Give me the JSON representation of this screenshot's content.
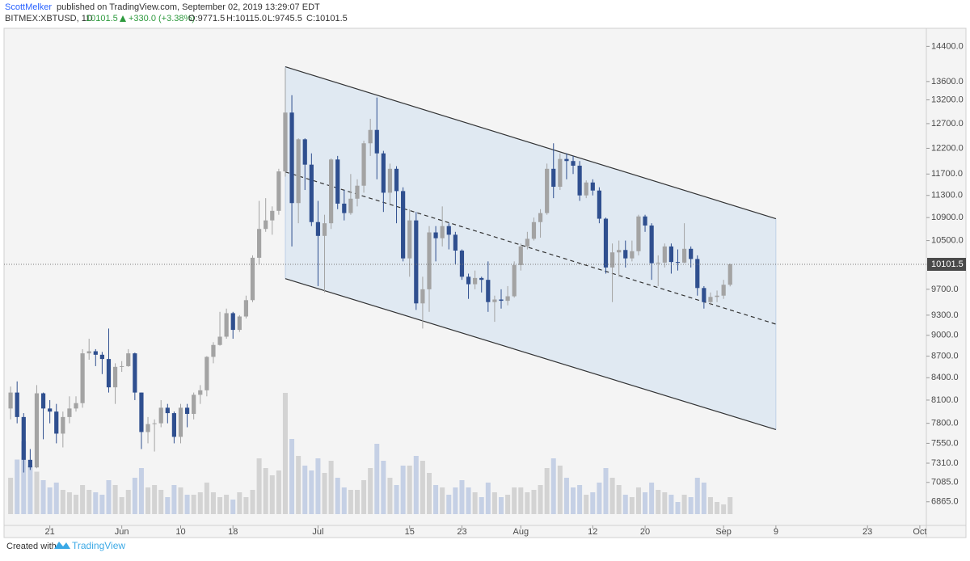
{
  "header": {
    "author": "ScottMelker",
    "published": "published on TradingView.com, September 02, 2019 13:29:07 EDT",
    "symbol": "BITMEX:XBTUSD, 1D",
    "last": "10101.5",
    "change": "+330.0 (+3.38%)",
    "open": "O:9771.5",
    "high": "H:10115.0",
    "low": "L:9745.5",
    "close": "C:10101.5"
  },
  "chart_data": {
    "type": "candlestick",
    "log_scale": true,
    "up_color": "#a3a3a3",
    "down_color": "#2f4f8f",
    "xlim": [
      "2019-05-14",
      "2019-10-02"
    ],
    "xticks": [
      {
        "value": "2019-05-21",
        "label": "21"
      },
      {
        "value": "2019-06-01",
        "label": "Jun"
      },
      {
        "value": "2019-06-10",
        "label": "10"
      },
      {
        "value": "2019-06-18",
        "label": "18"
      },
      {
        "value": "2019-07-01",
        "label": "Jul"
      },
      {
        "value": "2019-07-15",
        "label": "15"
      },
      {
        "value": "2019-07-23",
        "label": "23"
      },
      {
        "value": "2019-08-01",
        "label": "Aug"
      },
      {
        "value": "2019-08-12",
        "label": "12"
      },
      {
        "value": "2019-08-20",
        "label": "20"
      },
      {
        "value": "2019-09-01",
        "label": "Sep"
      },
      {
        "value": "2019-09-09",
        "label": "9"
      },
      {
        "value": "2019-09-23",
        "label": "23"
      },
      {
        "value": "2019-10-01",
        "label": "Oct"
      }
    ],
    "ylim": [
      6606,
      14830
    ],
    "yticks": [
      {
        "value": 14400,
        "label": "14400.0"
      },
      {
        "value": 13600,
        "label": "13600.0"
      },
      {
        "value": 13200,
        "label": "13200.0"
      },
      {
        "value": 12700,
        "label": "12700.0"
      },
      {
        "value": 12200,
        "label": "12200.0"
      },
      {
        "value": 11700,
        "label": "11700.0"
      },
      {
        "value": 11300,
        "label": "11300.0"
      },
      {
        "value": 10900,
        "label": "10900.0"
      },
      {
        "value": 10500,
        "label": "10500.0"
      },
      {
        "value": 9700,
        "label": "9700.0"
      },
      {
        "value": 9300,
        "label": "9300.0"
      },
      {
        "value": 9000,
        "label": "9000.0"
      },
      {
        "value": 8700,
        "label": "8700.0"
      },
      {
        "value": 8400,
        "label": "8400.0"
      },
      {
        "value": 8100,
        "label": "8100.0"
      },
      {
        "value": 7800,
        "label": "7800.0"
      },
      {
        "value": 7550,
        "label": "7550.0"
      },
      {
        "value": 7310,
        "label": "7310.0"
      },
      {
        "value": 7085,
        "label": "7085.0"
      },
      {
        "value": 6865,
        "label": "6865.0"
      }
    ],
    "x": [
      "2019-05-15",
      "2019-05-16",
      "2019-05-17",
      "2019-05-18",
      "2019-05-19",
      "2019-05-20",
      "2019-05-21",
      "2019-05-22",
      "2019-05-23",
      "2019-05-24",
      "2019-05-25",
      "2019-05-26",
      "2019-05-27",
      "2019-05-28",
      "2019-05-29",
      "2019-05-30",
      "2019-05-31",
      "2019-06-01",
      "2019-06-02",
      "2019-06-03",
      "2019-06-04",
      "2019-06-05",
      "2019-06-06",
      "2019-06-07",
      "2019-06-08",
      "2019-06-09",
      "2019-06-10",
      "2019-06-11",
      "2019-06-12",
      "2019-06-13",
      "2019-06-14",
      "2019-06-15",
      "2019-06-16",
      "2019-06-17",
      "2019-06-18",
      "2019-06-19",
      "2019-06-20",
      "2019-06-21",
      "2019-06-22",
      "2019-06-23",
      "2019-06-24",
      "2019-06-25",
      "2019-06-26",
      "2019-06-27",
      "2019-06-28",
      "2019-06-29",
      "2019-06-30",
      "2019-07-01",
      "2019-07-02",
      "2019-07-03",
      "2019-07-04",
      "2019-07-05",
      "2019-07-06",
      "2019-07-07",
      "2019-07-08",
      "2019-07-09",
      "2019-07-10",
      "2019-07-11",
      "2019-07-12",
      "2019-07-13",
      "2019-07-14",
      "2019-07-15",
      "2019-07-16",
      "2019-07-17",
      "2019-07-18",
      "2019-07-19",
      "2019-07-20",
      "2019-07-21",
      "2019-07-22",
      "2019-07-23",
      "2019-07-24",
      "2019-07-25",
      "2019-07-26",
      "2019-07-27",
      "2019-07-28",
      "2019-07-29",
      "2019-07-30",
      "2019-07-31",
      "2019-08-01",
      "2019-08-02",
      "2019-08-03",
      "2019-08-04",
      "2019-08-05",
      "2019-08-06",
      "2019-08-07",
      "2019-08-08",
      "2019-08-09",
      "2019-08-10",
      "2019-08-11",
      "2019-08-12",
      "2019-08-13",
      "2019-08-14",
      "2019-08-15",
      "2019-08-16",
      "2019-08-17",
      "2019-08-18",
      "2019-08-19",
      "2019-08-20",
      "2019-08-21",
      "2019-08-22",
      "2019-08-23",
      "2019-08-24",
      "2019-08-25",
      "2019-08-26",
      "2019-08-27",
      "2019-08-28",
      "2019-08-29",
      "2019-08-30",
      "2019-08-31",
      "2019-09-01",
      "2019-09-02"
    ],
    "open": [
      7990,
      8200,
      7880,
      7350,
      7260,
      8190,
      7990,
      7950,
      7670,
      7880,
      7990,
      8060,
      8740,
      8770,
      8720,
      8660,
      8270,
      8550,
      8560,
      8740,
      8200,
      7690,
      7790,
      7800,
      8000,
      7930,
      7630,
      8000,
      7920,
      8170,
      8230,
      8690,
      8860,
      8980,
      9330,
      9080,
      9280,
      9530,
      10210,
      10700,
      10850,
      11020,
      11750,
      12930,
      11160,
      12380,
      11880,
      10820,
      10580,
      10800,
      11980,
      11150,
      10980,
      11240,
      11480,
      12300,
      12570,
      12100,
      11350,
      11800,
      11380,
      10200,
      10850,
      9480,
      9700,
      10640,
      10540,
      10750,
      10600,
      10330,
      9900,
      9780,
      9880,
      9850,
      9500,
      9540,
      9520,
      9590,
      10090,
      10400,
      10530,
      10820,
      10980,
      11800,
      11460,
      11990,
      11950,
      11860,
      11300,
      11540,
      11390,
      10880,
      10050,
      10300,
      10340,
      10200,
      10320,
      10920,
      10760,
      10120,
      10130,
      10400,
      10140,
      10130,
      10360,
      10190,
      9720,
      9500,
      9580,
      9600,
      9771.5
    ],
    "high": [
      8280,
      8350,
      7930,
      7480,
      8300,
      8200,
      8100,
      8050,
      7950,
      8150,
      8150,
      8800,
      8950,
      8800,
      8760,
      9100,
      8600,
      8630,
      8800,
      8750,
      8200,
      7880,
      7850,
      8100,
      8050,
      7950,
      8050,
      8050,
      8200,
      8300,
      8700,
      8900,
      9350,
      9400,
      9350,
      9300,
      9600,
      10250,
      11200,
      11250,
      11100,
      11800,
      13900,
      13300,
      12400,
      12400,
      12100,
      11200,
      10950,
      12000,
      12050,
      11400,
      11700,
      11600,
      12350,
      12800,
      13250,
      12150,
      11900,
      11850,
      11450,
      11050,
      11000,
      9900,
      10750,
      10750,
      11100,
      10800,
      10650,
      10350,
      9950,
      10000,
      9900,
      10150,
      9600,
      9700,
      9750,
      10150,
      10450,
      10650,
      10900,
      11050,
      11900,
      12300,
      12100,
      12100,
      12050,
      11950,
      11580,
      11600,
      11450,
      10900,
      10450,
      10500,
      10500,
      10500,
      10950,
      10950,
      10800,
      10250,
      10450,
      10450,
      10350,
      10800,
      10400,
      10250,
      9750,
      9650,
      9680,
      9850,
      10115
    ],
    "low": [
      7850,
      7800,
      7200,
      7230,
      7250,
      7600,
      7800,
      7550,
      7500,
      7800,
      7950,
      8000,
      8650,
      8560,
      8450,
      8200,
      8050,
      8480,
      8550,
      8100,
      7480,
      7550,
      7450,
      7750,
      7800,
      7550,
      7550,
      7750,
      7850,
      8050,
      8150,
      8600,
      8850,
      8950,
      8950,
      9050,
      9250,
      9500,
      10100,
      10650,
      10600,
      10950,
      11650,
      10400,
      10800,
      11400,
      10750,
      9750,
      9650,
      10700,
      11050,
      10850,
      10950,
      11100,
      11350,
      12050,
      11600,
      11000,
      11150,
      10800,
      10150,
      9900,
      9380,
      9100,
      9350,
      10150,
      10400,
      10350,
      10100,
      9850,
      9550,
      9700,
      9650,
      9350,
      9200,
      9400,
      9450,
      9570,
      10000,
      10350,
      10500,
      10550,
      10950,
      11250,
      11400,
      11600,
      11700,
      11200,
      11250,
      11300,
      10800,
      9950,
      9500,
      9900,
      10050,
      10150,
      10250,
      10650,
      9850,
      9750,
      10050,
      9950,
      10000,
      10120,
      10050,
      9600,
      9400,
      9450,
      9500,
      9550,
      9745.5
    ],
    "close": [
      8200,
      7880,
      7350,
      7260,
      8190,
      7990,
      7950,
      7670,
      7880,
      7990,
      8060,
      8740,
      8770,
      8720,
      8660,
      8270,
      8550,
      8560,
      8740,
      8200,
      7690,
      7790,
      7800,
      8000,
      7930,
      7630,
      8000,
      7920,
      8170,
      8230,
      8690,
      8860,
      8980,
      9330,
      9080,
      9280,
      9530,
      10210,
      10700,
      10850,
      11020,
      11750,
      12930,
      11160,
      12380,
      11880,
      10820,
      10580,
      10800,
      11980,
      11150,
      10980,
      11240,
      11480,
      12300,
      12570,
      12100,
      11350,
      11800,
      11380,
      10200,
      10850,
      9480,
      9700,
      10640,
      10540,
      10750,
      10600,
      10330,
      9900,
      9780,
      9880,
      9850,
      9500,
      9540,
      9520,
      9590,
      10090,
      10400,
      10530,
      10820,
      10980,
      11800,
      11460,
      11990,
      11950,
      11860,
      11300,
      11540,
      11390,
      10880,
      10050,
      10300,
      10340,
      10200,
      10320,
      10920,
      10760,
      10120,
      10130,
      10400,
      10140,
      10130,
      10360,
      10190,
      9720,
      9500,
      9580,
      9600,
      9771.5,
      10101.5
    ],
    "volume": [
      30,
      45,
      60,
      40,
      35,
      28,
      22,
      26,
      20,
      18,
      16,
      24,
      20,
      18,
      16,
      28,
      24,
      14,
      20,
      30,
      38,
      22,
      24,
      20,
      14,
      24,
      22,
      16,
      16,
      18,
      26,
      18,
      14,
      16,
      12,
      18,
      14,
      20,
      46,
      38,
      32,
      36,
      100,
      62,
      48,
      40,
      36,
      46,
      34,
      44,
      30,
      22,
      20,
      20,
      28,
      38,
      58,
      44,
      30,
      24,
      40,
      40,
      48,
      44,
      34,
      24,
      22,
      16,
      22,
      28,
      22,
      18,
      14,
      26,
      18,
      14,
      16,
      22,
      22,
      18,
      20,
      24,
      38,
      46,
      40,
      30,
      22,
      24,
      16,
      18,
      26,
      38,
      30,
      24,
      16,
      14,
      22,
      18,
      26,
      20,
      18,
      16,
      10,
      16,
      14,
      30,
      26,
      14,
      10,
      8,
      14
    ],
    "drawings": [
      {
        "x": [
          "2019-06-26",
          "2019-09-09"
        ],
        "y": [
          13930,
          10880
        ],
        "style": "solid"
      },
      {
        "x": [
          "2019-06-26",
          "2019-09-09"
        ],
        "y": [
          9870,
          7720
        ],
        "style": "solid"
      },
      {
        "x": [
          "2019-06-26",
          "2019-09-09"
        ],
        "y": [
          11740,
          9165
        ],
        "style": "dashed"
      }
    ]
  },
  "footer": {
    "created": "Created with",
    "brand": "TradingView"
  }
}
